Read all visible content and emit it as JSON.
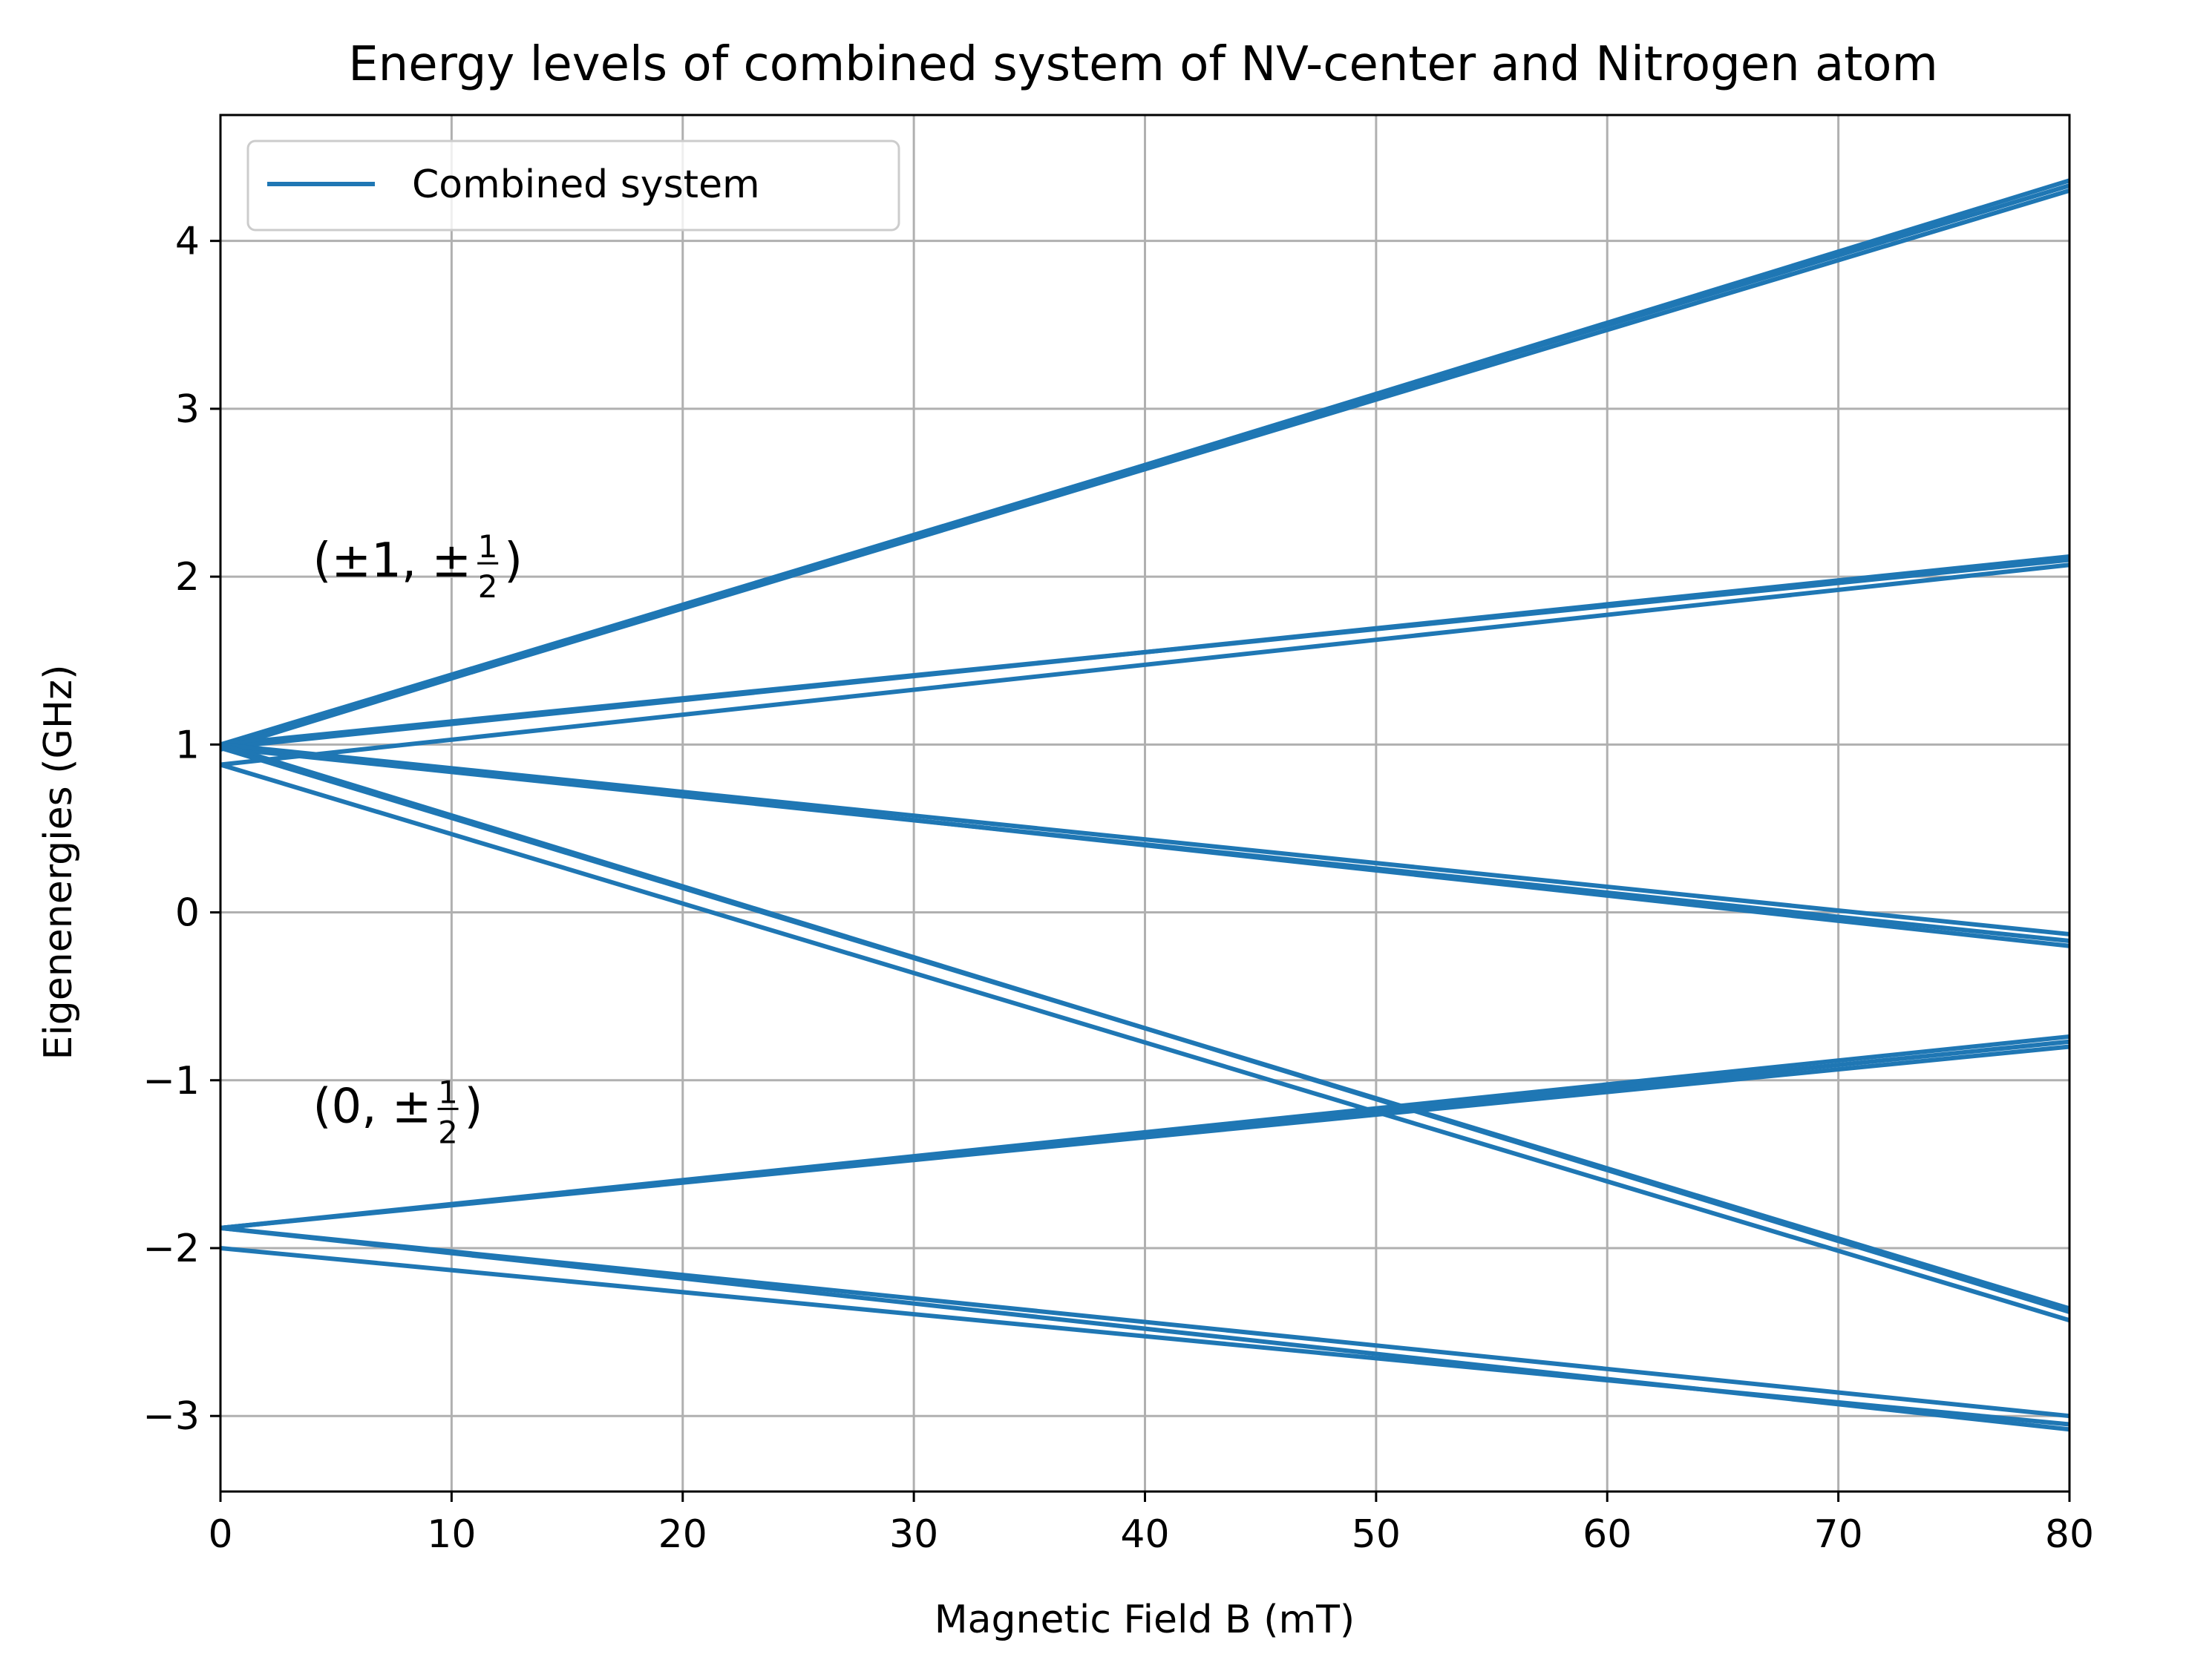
{
  "chart_data": {
    "type": "line",
    "title": "Energy levels of combined system of NV-center and Nitrogen atom",
    "xlabel": "Magnetic Field B (mT)",
    "ylabel": "Eigenenergies (GHz)",
    "xlim": [
      0,
      80
    ],
    "ylim": [
      -3.45,
      4.75
    ],
    "xticks": [
      0,
      10,
      20,
      30,
      40,
      50,
      60,
      70,
      80
    ],
    "yticks": [
      -3,
      -2,
      -1,
      0,
      1,
      2,
      3,
      4
    ],
    "xtick_labels": [
      "0",
      "10",
      "20",
      "30",
      "40",
      "50",
      "60",
      "70",
      "80"
    ],
    "ytick_labels": [
      "−3",
      "−2",
      "−1",
      "0",
      "1",
      "2",
      "3",
      "4"
    ],
    "grid": true,
    "legend": {
      "location": "upper-left",
      "entries": [
        "Combined system"
      ]
    },
    "color": "#1f77b4",
    "annotations": [
      {
        "text_before": "(±1, ±",
        "fraction_numerator": "1",
        "fraction_denominator": "2",
        "text_after": ")",
        "x": 4,
        "y": 2.0
      },
      {
        "text_before": "(0, ±",
        "fraction_numerator": "1",
        "fraction_denominator": "2",
        "text_after": ")",
        "x": 4,
        "y": -1.25
      }
    ],
    "series": [
      {
        "x": [
          0,
          80
        ],
        "y": [
          1.0,
          4.33
        ]
      },
      {
        "x": [
          0,
          80
        ],
        "y": [
          0.98,
          4.3
        ]
      },
      {
        "x": [
          0,
          80
        ],
        "y": [
          0.97,
          4.36
        ]
      },
      {
        "x": [
          0,
          80
        ],
        "y": [
          1.0,
          2.1
        ]
      },
      {
        "x": [
          0,
          80
        ],
        "y": [
          0.88,
          2.07
        ]
      },
      {
        "x": [
          0,
          80
        ],
        "y": [
          0.98,
          2.12
        ]
      },
      {
        "x": [
          0,
          80
        ],
        "y": [
          1.0,
          -0.13
        ]
      },
      {
        "x": [
          0,
          80
        ],
        "y": [
          0.98,
          -0.17
        ]
      },
      {
        "x": [
          0,
          80
        ],
        "y": [
          1.0,
          -0.2
        ]
      },
      {
        "x": [
          0,
          80
        ],
        "y": [
          0.88,
          -2.43
        ]
      },
      {
        "x": [
          0,
          80
        ],
        "y": [
          1.0,
          -2.38
        ]
      },
      {
        "x": [
          0,
          80
        ],
        "y": [
          0.98,
          -2.36
        ]
      },
      {
        "x": [
          0,
          80
        ],
        "y": [
          -1.88,
          -0.77
        ]
      },
      {
        "x": [
          0,
          80
        ],
        "y": [
          -1.88,
          -0.8
        ]
      },
      {
        "x": [
          0,
          80
        ],
        "y": [
          -1.88,
          -0.74
        ]
      },
      {
        "x": [
          0,
          80
        ],
        "y": [
          -2.0,
          -3.05
        ]
      },
      {
        "x": [
          0,
          80
        ],
        "y": [
          -1.88,
          -3.0
        ]
      },
      {
        "x": [
          0,
          80
        ],
        "y": [
          -1.88,
          -3.08
        ]
      }
    ]
  }
}
